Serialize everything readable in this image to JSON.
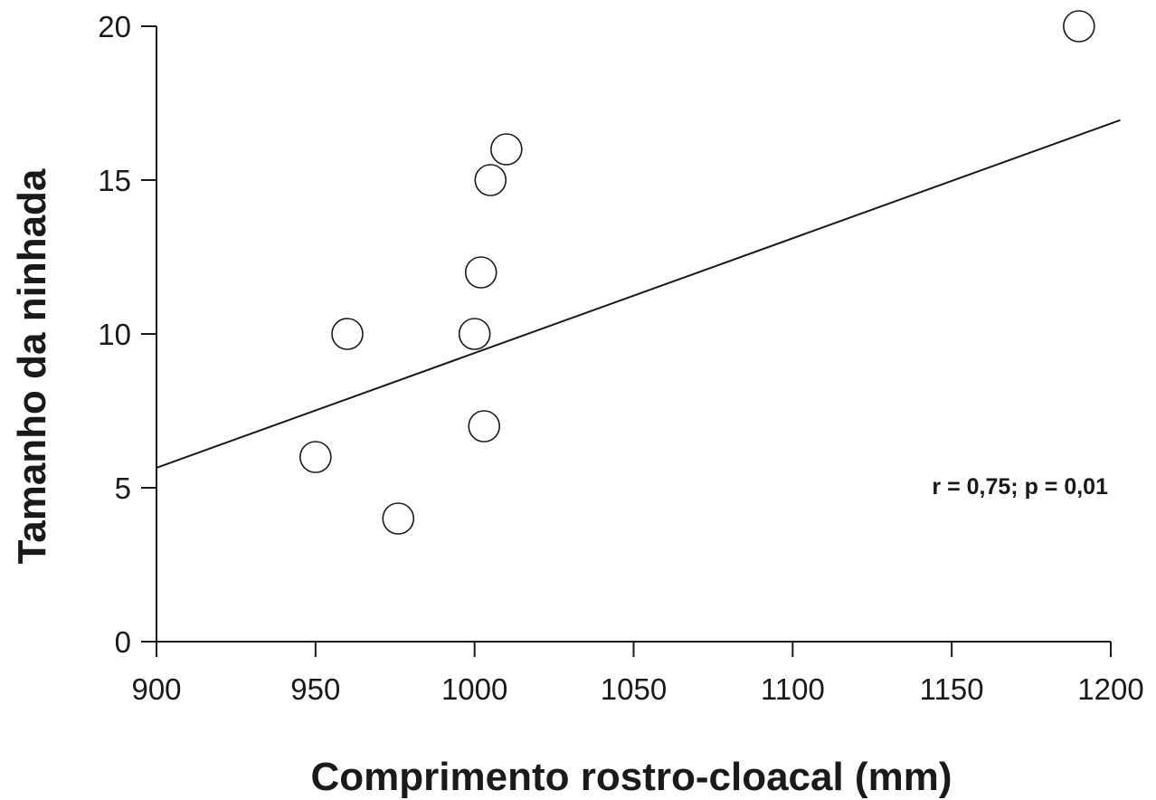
{
  "chart_data": {
    "type": "scatter",
    "title": "",
    "xlabel": "Comprimento rostro-cloacal (mm)",
    "ylabel": "Tamanho da ninhada",
    "xlim": [
      900,
      1200
    ],
    "ylim": [
      0,
      20
    ],
    "xticks": [
      900,
      950,
      1000,
      1050,
      1100,
      1150,
      1200
    ],
    "yticks": [
      0,
      5,
      10,
      15,
      20
    ],
    "grid": false,
    "points": [
      {
        "x": 950,
        "y": 6
      },
      {
        "x": 960,
        "y": 10
      },
      {
        "x": 976,
        "y": 4
      },
      {
        "x": 1000,
        "y": 10
      },
      {
        "x": 1002,
        "y": 12
      },
      {
        "x": 1003,
        "y": 7
      },
      {
        "x": 1005,
        "y": 15
      },
      {
        "x": 1010,
        "y": 16
      },
      {
        "x": 1190,
        "y": 20
      }
    ],
    "regression_line": {
      "x": [
        900,
        1203
      ],
      "y": [
        5.65,
        16.95
      ]
    },
    "annotation": "r = 0,75; p = 0,01",
    "marker": "open-circle",
    "color": "#1a1a1a"
  }
}
